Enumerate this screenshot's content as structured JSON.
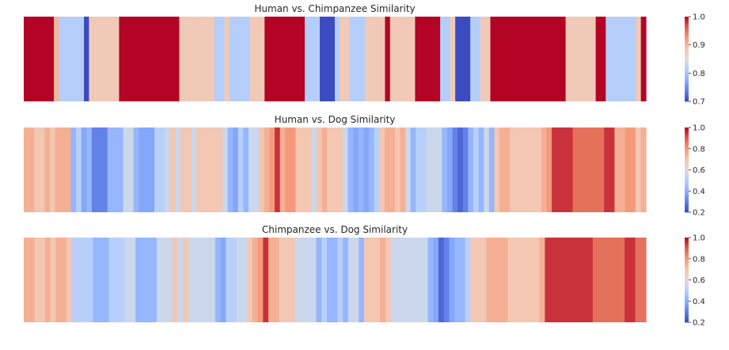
{
  "chart_data": [
    {
      "type": "heatmap",
      "title": "Human vs. Chimpanzee Similarity",
      "colormap": "coolwarm",
      "vmin": 0.7,
      "vmax": 1.0,
      "colorbar_ticks": [
        "0.7",
        "0.8",
        "0.9",
        "1.0"
      ],
      "xlabel": "",
      "ylabel": "",
      "values": [
        1.0,
        1.0,
        1.0,
        1.0,
        1.0,
        1.0,
        0.9,
        0.81,
        0.81,
        0.81,
        0.81,
        0.81,
        0.7,
        0.88,
        0.88,
        0.88,
        0.88,
        0.88,
        0.88,
        1.0,
        1.0,
        1.0,
        1.0,
        1.0,
        1.0,
        1.0,
        1.0,
        1.0,
        1.0,
        1.0,
        1.0,
        0.88,
        0.88,
        0.88,
        0.88,
        0.88,
        0.88,
        0.88,
        0.81,
        0.81,
        0.88,
        0.81,
        0.81,
        0.81,
        0.81,
        0.88,
        0.88,
        0.88,
        1.0,
        1.0,
        1.0,
        1.0,
        1.0,
        1.0,
        1.0,
        1.0,
        0.81,
        0.81,
        0.81,
        0.7,
        0.7,
        0.7,
        0.81,
        0.88,
        0.88,
        0.81,
        0.81,
        0.81,
        0.88,
        0.88,
        0.88,
        0.88,
        1.0,
        0.88,
        0.88,
        0.88,
        0.88,
        0.88,
        1.0,
        1.0,
        1.0,
        1.0,
        1.0,
        0.81,
        0.81,
        0.88,
        0.7,
        0.7,
        0.7,
        0.81,
        0.81,
        0.88,
        0.88,
        1.0,
        1.0,
        1.0,
        1.0,
        1.0,
        1.0,
        1.0,
        1.0,
        1.0,
        1.0,
        1.0,
        1.0,
        1.0,
        1.0,
        1.0,
        0.88,
        0.88,
        0.88,
        0.88,
        0.88,
        0.88,
        1.0,
        1.0,
        0.81,
        0.81,
        0.81,
        0.81,
        0.81,
        0.81,
        0.88,
        1.0
      ]
    },
    {
      "type": "heatmap",
      "title": "Human vs. Dog Similarity",
      "colormap": "coolwarm",
      "vmin": 0.2,
      "vmax": 1.0,
      "colorbar_ticks": [
        "0.2",
        "0.4",
        "0.6",
        "0.8",
        "1.0"
      ],
      "xlabel": "",
      "ylabel": "",
      "values": [
        0.75,
        0.75,
        0.69,
        0.69,
        0.75,
        0.69,
        0.75,
        0.75,
        0.75,
        0.42,
        0.5,
        0.38,
        0.42,
        0.3,
        0.3,
        0.3,
        0.42,
        0.42,
        0.42,
        0.55,
        0.55,
        0.42,
        0.38,
        0.38,
        0.38,
        0.5,
        0.5,
        0.55,
        0.69,
        0.55,
        0.69,
        0.69,
        0.55,
        0.69,
        0.69,
        0.69,
        0.69,
        0.69,
        0.55,
        0.42,
        0.38,
        0.5,
        0.42,
        0.55,
        0.55,
        0.69,
        0.75,
        0.8,
        0.95,
        0.75,
        0.8,
        0.8,
        0.69,
        0.69,
        0.69,
        0.55,
        0.69,
        0.75,
        0.69,
        0.69,
        0.69,
        0.55,
        0.42,
        0.38,
        0.42,
        0.38,
        0.42,
        0.5,
        0.69,
        0.75,
        0.75,
        0.69,
        0.75,
        0.55,
        0.42,
        0.5,
        0.5,
        0.55,
        0.55,
        0.55,
        0.42,
        0.38,
        0.3,
        0.25,
        0.3,
        0.42,
        0.5,
        0.42,
        0.55,
        0.42,
        0.69,
        0.75,
        0.75,
        0.69,
        0.69,
        0.69,
        0.69,
        0.69,
        0.69,
        0.75,
        0.8,
        0.95,
        0.95,
        0.95,
        0.95,
        0.87,
        0.87,
        0.87,
        0.87,
        0.87,
        0.87,
        0.95,
        0.95,
        0.75,
        0.75,
        0.8,
        0.8,
        0.69,
        0.75
      ]
    },
    {
      "type": "heatmap",
      "title": "Chimpanzee vs. Dog Similarity",
      "colormap": "coolwarm",
      "vmin": 0.2,
      "vmax": 1.0,
      "colorbar_ticks": [
        "0.2",
        "0.4",
        "0.6",
        "0.8",
        "1.0"
      ],
      "xlabel": "",
      "ylabel": "",
      "values": [
        0.75,
        0.75,
        0.69,
        0.69,
        0.75,
        0.69,
        0.75,
        0.75,
        0.69,
        0.5,
        0.5,
        0.5,
        0.5,
        0.42,
        0.42,
        0.42,
        0.5,
        0.5,
        0.5,
        0.55,
        0.55,
        0.42,
        0.42,
        0.42,
        0.42,
        0.55,
        0.55,
        0.55,
        0.69,
        0.55,
        0.69,
        0.55,
        0.55,
        0.55,
        0.55,
        0.55,
        0.42,
        0.38,
        0.5,
        0.5,
        0.55,
        0.55,
        0.69,
        0.75,
        0.8,
        0.95,
        0.75,
        0.75,
        0.69,
        0.69,
        0.69,
        0.55,
        0.55,
        0.55,
        0.55,
        0.42,
        0.5,
        0.42,
        0.42,
        0.5,
        0.42,
        0.55,
        0.55,
        0.42,
        0.69,
        0.69,
        0.69,
        0.75,
        0.69,
        0.55,
        0.55,
        0.55,
        0.55,
        0.55,
        0.55,
        0.55,
        0.42,
        0.38,
        0.25,
        0.3,
        0.38,
        0.42,
        0.42,
        0.5,
        0.69,
        0.69,
        0.69,
        0.75,
        0.75,
        0.75,
        0.75,
        0.69,
        0.69,
        0.69,
        0.69,
        0.69,
        0.69,
        0.75,
        0.95,
        0.95,
        0.95,
        0.95,
        0.95,
        0.95,
        0.95,
        0.95,
        0.95,
        0.87,
        0.87,
        0.87,
        0.87,
        0.87,
        0.87,
        0.95,
        0.95,
        0.87,
        0.87
      ]
    }
  ]
}
